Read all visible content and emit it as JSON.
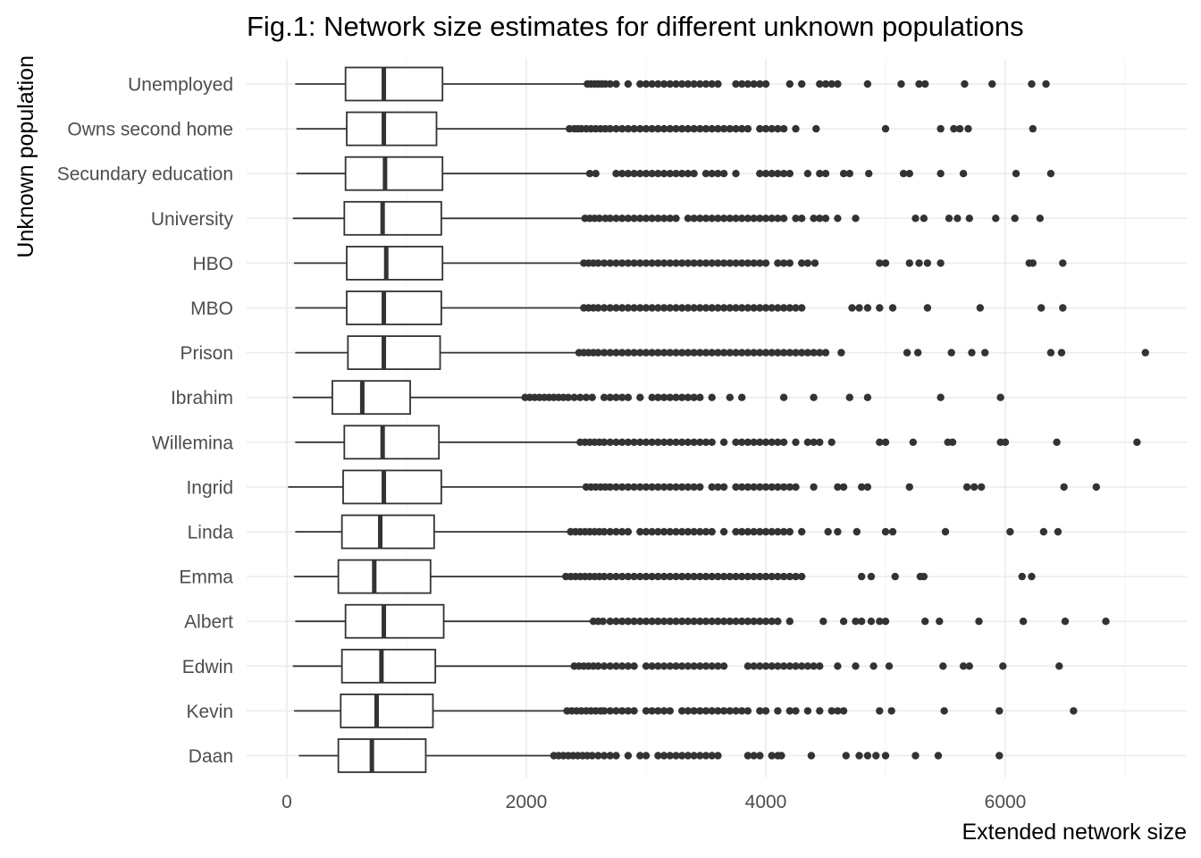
{
  "chart_data": {
    "type": "boxplot",
    "orientation": "horizontal",
    "title": "Fig.1: Network size estimates for different unknown populations",
    "xlabel": "Extended network size",
    "ylabel": "Unknown population",
    "xlim": [
      -350,
      7400
    ],
    "xticks": [
      0,
      2000,
      4000,
      6000
    ],
    "xtick_labels": [
      "0",
      "2000",
      "4000",
      "6000"
    ],
    "grid": true,
    "legend": "none",
    "colors": {
      "box_line": "#333333",
      "box_fill": "#ffffff",
      "grid": "#ebebeb",
      "tick_text": "#4d4d4d"
    },
    "categories": [
      "Unemployed",
      "Owns second home",
      "Secundary education",
      "University",
      "HBO",
      "MBO",
      "Prison",
      "Ibrahim",
      "Willemina",
      "Ingrid",
      "Linda",
      "Emma",
      "Albert",
      "Edwin",
      "Kevin",
      "Daan"
    ],
    "boxes": [
      {
        "name": "Unemployed",
        "whisker_low": 70,
        "q1": 490,
        "median": 810,
        "q3": 1300,
        "whisker_high": 2500,
        "outliers": [
          2510,
          2540,
          2570,
          2600,
          2630,
          2660,
          2700,
          2750,
          2850,
          2950,
          3000,
          3050,
          3100,
          3150,
          3200,
          3250,
          3300,
          3350,
          3400,
          3450,
          3500,
          3550,
          3600,
          3750,
          3800,
          3850,
          3900,
          3950,
          4000,
          4200,
          4300,
          4450,
          4500,
          4550,
          4600,
          4850,
          5130,
          5280,
          5330,
          5660,
          5890,
          6220,
          6340
        ]
      },
      {
        "name": "Owns second home",
        "whisker_low": 80,
        "q1": 500,
        "median": 810,
        "q3": 1250,
        "whisker_high": 2350,
        "outliers": [
          2360,
          2400,
          2430,
          2460,
          2500,
          2540,
          2580,
          2620,
          2660,
          2700,
          2750,
          2800,
          2850,
          2900,
          2950,
          3000,
          3050,
          3100,
          3150,
          3200,
          3250,
          3300,
          3350,
          3400,
          3450,
          3500,
          3550,
          3600,
          3650,
          3700,
          3750,
          3800,
          3850,
          3950,
          4000,
          4050,
          4100,
          4150,
          4250,
          4420,
          5000,
          5460,
          5570,
          5620,
          5690,
          6230
        ]
      },
      {
        "name": "Secundary education",
        "whisker_low": 80,
        "q1": 490,
        "median": 820,
        "q3": 1300,
        "whisker_high": 2520,
        "outliers": [
          2530,
          2580,
          2750,
          2800,
          2850,
          2900,
          2950,
          3000,
          3050,
          3100,
          3150,
          3200,
          3250,
          3300,
          3350,
          3400,
          3500,
          3550,
          3600,
          3650,
          3750,
          3950,
          4000,
          4050,
          4100,
          4150,
          4200,
          4350,
          4450,
          4500,
          4650,
          4700,
          4860,
          5150,
          5200,
          5460,
          5650,
          6090,
          6380
        ]
      },
      {
        "name": "University",
        "whisker_low": 50,
        "q1": 480,
        "median": 800,
        "q3": 1290,
        "whisker_high": 2480,
        "outliers": [
          2490,
          2530,
          2570,
          2610,
          2660,
          2700,
          2750,
          2800,
          2850,
          2900,
          2950,
          3000,
          3050,
          3100,
          3150,
          3200,
          3250,
          3350,
          3400,
          3450,
          3500,
          3550,
          3600,
          3650,
          3700,
          3750,
          3800,
          3850,
          3900,
          3950,
          4000,
          4050,
          4100,
          4150,
          4250,
          4300,
          4400,
          4450,
          4500,
          4600,
          4750,
          5250,
          5320,
          5530,
          5600,
          5700,
          5920,
          6080,
          6290
        ]
      },
      {
        "name": "HBO",
        "whisker_low": 60,
        "q1": 500,
        "median": 830,
        "q3": 1300,
        "whisker_high": 2470,
        "outliers": [
          2480,
          2520,
          2560,
          2600,
          2650,
          2700,
          2750,
          2800,
          2850,
          2900,
          2950,
          3000,
          3050,
          3100,
          3150,
          3200,
          3250,
          3300,
          3350,
          3400,
          3450,
          3500,
          3550,
          3600,
          3650,
          3700,
          3750,
          3800,
          3850,
          3900,
          3950,
          4000,
          4100,
          4150,
          4200,
          4300,
          4350,
          4410,
          4950,
          5000,
          5200,
          5280,
          5350,
          5460,
          6200,
          6230,
          6480
        ]
      },
      {
        "name": "MBO",
        "whisker_low": 70,
        "q1": 500,
        "median": 810,
        "q3": 1290,
        "whisker_high": 2470,
        "outliers": [
          2480,
          2520,
          2560,
          2600,
          2650,
          2700,
          2750,
          2800,
          2850,
          2900,
          2950,
          3000,
          3050,
          3100,
          3150,
          3200,
          3250,
          3300,
          3350,
          3400,
          3450,
          3500,
          3550,
          3600,
          3650,
          3700,
          3750,
          3800,
          3850,
          3900,
          3950,
          4000,
          4050,
          4100,
          4150,
          4200,
          4250,
          4300,
          4720,
          4780,
          4850,
          4950,
          5060,
          5350,
          5790,
          6300,
          6480
        ]
      },
      {
        "name": "Prison",
        "whisker_low": 70,
        "q1": 510,
        "median": 810,
        "q3": 1280,
        "whisker_high": 2430,
        "outliers": [
          2440,
          2480,
          2520,
          2560,
          2600,
          2650,
          2700,
          2750,
          2800,
          2850,
          2900,
          2950,
          3000,
          3050,
          3100,
          3150,
          3200,
          3250,
          3300,
          3350,
          3400,
          3450,
          3500,
          3550,
          3600,
          3650,
          3700,
          3750,
          3800,
          3850,
          3900,
          3950,
          4000,
          4050,
          4100,
          4150,
          4200,
          4250,
          4300,
          4350,
          4400,
          4450,
          4500,
          4630,
          5180,
          5270,
          5550,
          5720,
          5830,
          6380,
          6470,
          7170
        ]
      },
      {
        "name": "Ibrahim",
        "whisker_low": 50,
        "q1": 380,
        "median": 630,
        "q3": 1030,
        "whisker_high": 1980,
        "outliers": [
          1990,
          2030,
          2070,
          2110,
          2150,
          2190,
          2230,
          2270,
          2310,
          2350,
          2400,
          2450,
          2500,
          2550,
          2650,
          2700,
          2750,
          2800,
          2850,
          2950,
          3050,
          3100,
          3150,
          3200,
          3250,
          3300,
          3350,
          3400,
          3450,
          3550,
          3700,
          3800,
          4150,
          4400,
          4700,
          4850,
          5460,
          5960
        ]
      },
      {
        "name": "Willemina",
        "whisker_low": 70,
        "q1": 480,
        "median": 800,
        "q3": 1270,
        "whisker_high": 2440,
        "outliers": [
          2450,
          2490,
          2530,
          2570,
          2610,
          2650,
          2700,
          2750,
          2800,
          2850,
          2900,
          2950,
          3000,
          3050,
          3100,
          3150,
          3200,
          3250,
          3300,
          3350,
          3400,
          3450,
          3500,
          3550,
          3650,
          3750,
          3800,
          3850,
          3900,
          3950,
          4000,
          4050,
          4100,
          4150,
          4250,
          4350,
          4400,
          4450,
          4550,
          4950,
          5000,
          5230,
          5520,
          5560,
          5960,
          6000,
          6430,
          7100
        ]
      },
      {
        "name": "Ingrid",
        "whisker_low": 10,
        "q1": 470,
        "median": 810,
        "q3": 1290,
        "whisker_high": 2490,
        "outliers": [
          2500,
          2540,
          2580,
          2620,
          2660,
          2700,
          2750,
          2800,
          2850,
          2900,
          2950,
          3000,
          3050,
          3100,
          3150,
          3200,
          3250,
          3300,
          3350,
          3400,
          3450,
          3550,
          3600,
          3650,
          3750,
          3800,
          3850,
          3900,
          3950,
          4000,
          4050,
          4100,
          4150,
          4200,
          4250,
          4400,
          4600,
          4650,
          4800,
          4850,
          5200,
          5680,
          5740,
          5800,
          6490,
          6760
        ]
      },
      {
        "name": "Linda",
        "whisker_low": 70,
        "q1": 460,
        "median": 780,
        "q3": 1230,
        "whisker_high": 2360,
        "outliers": [
          2370,
          2410,
          2450,
          2490,
          2530,
          2570,
          2610,
          2650,
          2700,
          2750,
          2800,
          2850,
          2950,
          3000,
          3050,
          3100,
          3150,
          3200,
          3250,
          3300,
          3350,
          3400,
          3450,
          3500,
          3550,
          3650,
          3750,
          3800,
          3850,
          3900,
          3950,
          4000,
          4050,
          4100,
          4150,
          4200,
          4300,
          4520,
          4600,
          4760,
          5000,
          5060,
          5500,
          6040,
          6320,
          6440
        ]
      },
      {
        "name": "Emma",
        "whisker_low": 60,
        "q1": 430,
        "median": 730,
        "q3": 1200,
        "whisker_high": 2320,
        "outliers": [
          2330,
          2370,
          2410,
          2450,
          2490,
          2530,
          2570,
          2610,
          2650,
          2700,
          2750,
          2800,
          2850,
          2900,
          2950,
          3000,
          3050,
          3100,
          3150,
          3200,
          3250,
          3300,
          3350,
          3400,
          3450,
          3500,
          3550,
          3600,
          3650,
          3700,
          3750,
          3800,
          3850,
          3900,
          3950,
          4000,
          4050,
          4100,
          4150,
          4200,
          4250,
          4300,
          4800,
          4880,
          5080,
          5290,
          5320,
          6140,
          6220
        ]
      },
      {
        "name": "Albert",
        "whisker_low": 70,
        "q1": 490,
        "median": 810,
        "q3": 1310,
        "whisker_high": 2550,
        "outliers": [
          2560,
          2600,
          2640,
          2700,
          2750,
          2800,
          2850,
          2900,
          2950,
          3000,
          3050,
          3100,
          3150,
          3200,
          3250,
          3300,
          3350,
          3400,
          3450,
          3500,
          3550,
          3600,
          3650,
          3700,
          3750,
          3800,
          3850,
          3900,
          3950,
          4000,
          4050,
          4100,
          4200,
          4480,
          4650,
          4750,
          4800,
          4880,
          4950,
          5000,
          5330,
          5450,
          5780,
          6150,
          6500,
          6840
        ]
      },
      {
        "name": "Edwin",
        "whisker_low": 50,
        "q1": 460,
        "median": 790,
        "q3": 1240,
        "whisker_high": 2390,
        "outliers": [
          2400,
          2440,
          2480,
          2520,
          2560,
          2600,
          2650,
          2700,
          2750,
          2800,
          2850,
          2900,
          3000,
          3050,
          3100,
          3150,
          3200,
          3250,
          3300,
          3350,
          3400,
          3450,
          3500,
          3550,
          3600,
          3650,
          3850,
          3900,
          3950,
          4000,
          4050,
          4100,
          4150,
          4200,
          4250,
          4300,
          4350,
          4400,
          4450,
          4600,
          4750,
          4900,
          5030,
          5480,
          5650,
          5700,
          5980,
          6450
        ]
      },
      {
        "name": "Kevin",
        "whisker_low": 60,
        "q1": 450,
        "median": 750,
        "q3": 1220,
        "whisker_high": 2330,
        "outliers": [
          2340,
          2380,
          2420,
          2460,
          2500,
          2540,
          2580,
          2620,
          2650,
          2700,
          2750,
          2800,
          2850,
          2900,
          3000,
          3050,
          3100,
          3150,
          3200,
          3300,
          3350,
          3400,
          3450,
          3500,
          3550,
          3600,
          3650,
          3700,
          3750,
          3800,
          3850,
          3950,
          4000,
          4100,
          4200,
          4250,
          4350,
          4450,
          4550,
          4600,
          4650,
          4950,
          5050,
          5490,
          5950,
          6570
        ]
      },
      {
        "name": "Daan",
        "whisker_low": 100,
        "q1": 430,
        "median": 710,
        "q3": 1160,
        "whisker_high": 2220,
        "outliers": [
          2230,
          2270,
          2310,
          2350,
          2390,
          2430,
          2470,
          2510,
          2550,
          2600,
          2650,
          2700,
          2750,
          2850,
          2950,
          3000,
          3100,
          3150,
          3200,
          3250,
          3300,
          3350,
          3400,
          3450,
          3500,
          3550,
          3600,
          3850,
          3900,
          3950,
          4050,
          4100,
          4130,
          4380,
          4670,
          4780,
          4850,
          4920,
          5000,
          5250,
          5440,
          5950
        ]
      }
    ]
  }
}
